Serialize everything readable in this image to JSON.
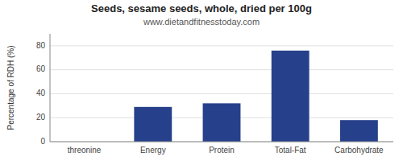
{
  "chart_data": {
    "type": "bar",
    "title": "Seeds, sesame seeds, whole, dried per 100g",
    "subtitle": "www.dietandfitnesstoday.com",
    "categories": [
      "threonine",
      "Energy",
      "Protein",
      "Total-Fat",
      "Carbohydrate"
    ],
    "values": [
      0,
      29,
      32,
      76,
      18
    ],
    "color": "#27408B",
    "ylabel": "Percentage of RDH (%)",
    "ylim": [
      0,
      90
    ],
    "yticks": [
      0,
      20,
      40,
      60,
      80
    ],
    "grid": true
  }
}
